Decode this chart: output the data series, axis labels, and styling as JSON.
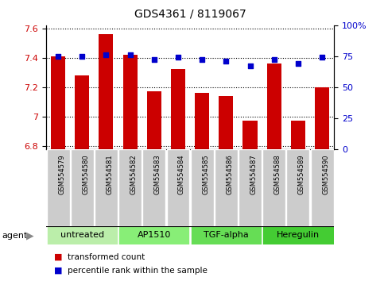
{
  "title": "GDS4361 / 8119067",
  "samples": [
    "GSM554579",
    "GSM554580",
    "GSM554581",
    "GSM554582",
    "GSM554583",
    "GSM554584",
    "GSM554585",
    "GSM554586",
    "GSM554587",
    "GSM554588",
    "GSM554589",
    "GSM554590"
  ],
  "bar_values": [
    7.41,
    7.28,
    7.56,
    7.42,
    7.17,
    7.32,
    7.16,
    7.14,
    6.97,
    7.36,
    6.97,
    7.2
  ],
  "percentile_values": [
    75,
    75,
    76,
    76,
    72,
    74,
    72,
    71,
    67,
    72,
    69,
    74
  ],
  "ylim_left": [
    6.78,
    7.62
  ],
  "ylim_right": [
    0,
    100
  ],
  "yticks_left": [
    6.8,
    7.0,
    7.2,
    7.4,
    7.6
  ],
  "ytick_labels_left": [
    "6.8",
    "7",
    "7.2",
    "7.4",
    "7.6"
  ],
  "yticks_right": [
    0,
    25,
    50,
    75,
    100
  ],
  "ytick_labels_right": [
    "0",
    "25",
    "50",
    "75",
    "100%"
  ],
  "bar_color": "#cc0000",
  "dot_color": "#0000cc",
  "agent_groups": [
    {
      "label": "untreated",
      "start": 0,
      "end": 3,
      "color": "#bbeeaa"
    },
    {
      "label": "AP1510",
      "start": 3,
      "end": 6,
      "color": "#88ee77"
    },
    {
      "label": "TGF-alpha",
      "start": 6,
      "end": 9,
      "color": "#66dd55"
    },
    {
      "label": "Heregulin",
      "start": 9,
      "end": 12,
      "color": "#44cc33"
    }
  ],
  "legend_bar_label": "transformed count",
  "legend_dot_label": "percentile rank within the sample",
  "agent_label": "agent",
  "bar_color_leg": "#cc0000",
  "dot_color_leg": "#0000cc",
  "grid_color": "#000000",
  "tick_label_gray_bg": "#cccccc",
  "bar_width": 0.6,
  "title_fontsize": 10,
  "tick_fontsize": 8,
  "sample_fontsize": 6,
  "agent_fontsize": 8,
  "legend_fontsize": 7.5
}
